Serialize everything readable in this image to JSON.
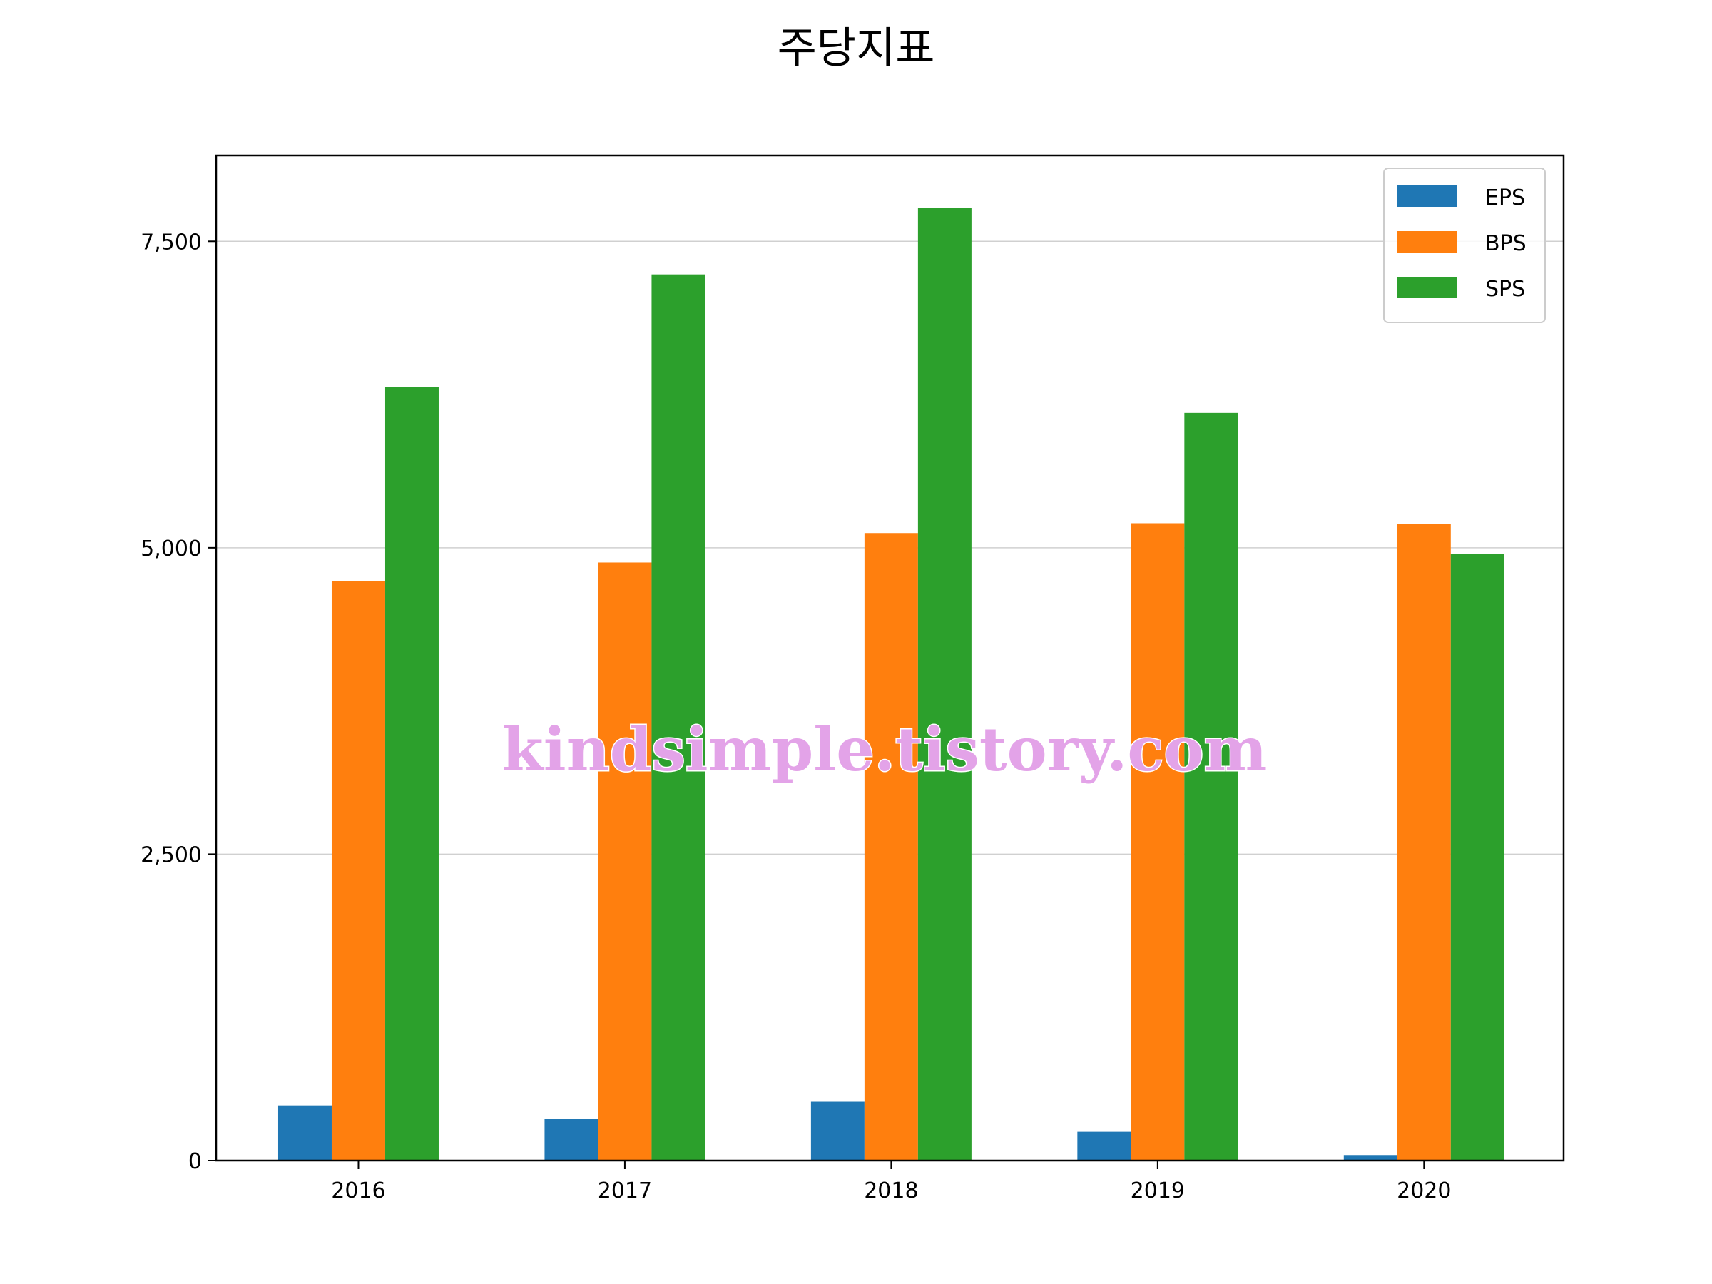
{
  "chart_data": {
    "type": "bar",
    "title": "주당지표",
    "xlabel": "",
    "ylabel": "",
    "categories": [
      "2016",
      "2017",
      "2018",
      "2019",
      "2020"
    ],
    "series": [
      {
        "name": "EPS",
        "color": "#1f77b4",
        "values": [
          450,
          340,
          480,
          235,
          45
        ]
      },
      {
        "name": "BPS",
        "color": "#ff7f0e",
        "values": [
          4730,
          4880,
          5120,
          5200,
          5195
        ]
      },
      {
        "name": "SPS",
        "color": "#2ca02c",
        "values": [
          6310,
          7230,
          7770,
          6100,
          4950
        ]
      }
    ],
    "ylim": [
      0,
      8200
    ],
    "yticks": [
      0,
      2500,
      5000,
      7500
    ],
    "ytick_labels": [
      "0",
      "2,500",
      "5,000",
      "7,500"
    ],
    "grid": "horizontal",
    "legend_position": "top-right",
    "watermark": "kindsimple.tistory.com"
  }
}
